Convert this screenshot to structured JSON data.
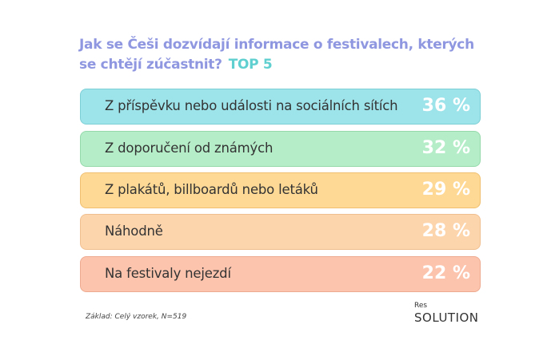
{
  "title": "Jak se Češi dozvídají informace o festivalech, kterých se chtějí zúčastnit?",
  "badge": "TOP 5",
  "chart_data": {
    "type": "bar",
    "title": "Jak se Češi dozvídají informace o festivalech, kterých se chtějí zúčastnit?",
    "categories": [
      "Z příspěvku nebo události na sociálních sítích",
      "Z doporučení od známých",
      "Z plakátů, billboardů nebo letáků",
      "Náhodně",
      "Na festivaly nejezdí"
    ],
    "values": [
      36,
      32,
      29,
      28,
      22
    ],
    "labels": [
      "36 %",
      "32 %",
      "29 %",
      "28 %",
      "22 %"
    ],
    "colors": [
      "#9de3ea",
      "#b5edc8",
      "#fed995",
      "#fdd5ad",
      "#fcc4ad"
    ],
    "borders": [
      "#7dcfd6",
      "#95d9ab",
      "#f0c070",
      "#f0bf90",
      "#eeaa90"
    ]
  },
  "footnote": "Základ: Celý vzorek, N=519",
  "logo": {
    "top": "Res",
    "bottom": "SOLUTION"
  }
}
